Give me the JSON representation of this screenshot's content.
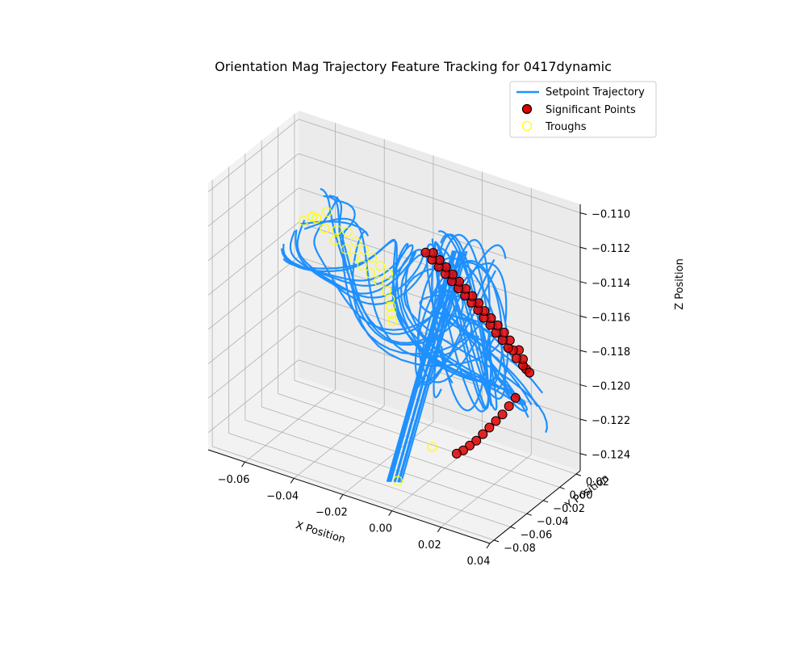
{
  "chart_data": {
    "type": "scatter",
    "title": "Orientation Mag Trajectory Feature Tracking for 0417dynamic",
    "xlabel": "X Position",
    "ylabel": "Y Position",
    "zlabel": "Z Position",
    "projection": "3d",
    "grid": true,
    "legend_placement": "top-right",
    "x_ticks": [
      "−0.06",
      "−0.04",
      "−0.02",
      "0.00",
      "0.02",
      "0.04"
    ],
    "y_ticks": [
      "−0.08",
      "−0.06",
      "−0.04",
      "−0.02",
      "0.00",
      "0.02"
    ],
    "z_ticks": [
      "−0.124",
      "−0.122",
      "−0.120",
      "−0.118",
      "−0.116",
      "−0.114",
      "−0.112",
      "−0.110"
    ],
    "xlim": [
      -0.075,
      0.04
    ],
    "ylim": [
      -0.085,
      0.025
    ],
    "zlim": [
      -0.125,
      -0.1095
    ],
    "series": [
      {
        "name": "Setpoint Trajectory",
        "kind": "line",
        "color": "#1e90ff"
      },
      {
        "name": "Significant Points",
        "kind": "scatter",
        "color": "#ff0000",
        "edge": "#000000"
      },
      {
        "name": "Troughs",
        "kind": "scatter",
        "color": "none",
        "edge": "#ffff00"
      }
    ],
    "significant_points": [
      {
        "x": 0.028,
        "y": -0.005,
        "z": -0.1185
      },
      {
        "x": 0.029,
        "y": -0.004,
        "z": -0.1187
      },
      {
        "x": 0.027,
        "y": -0.006,
        "z": -0.1183
      },
      {
        "x": 0.026,
        "y": -0.003,
        "z": -0.1181
      },
      {
        "x": 0.025,
        "y": -0.008,
        "z": -0.1179
      },
      {
        "x": 0.024,
        "y": -0.002,
        "z": -0.1177
      },
      {
        "x": 0.023,
        "y": -0.006,
        "z": -0.1176
      },
      {
        "x": 0.022,
        "y": -0.009,
        "z": -0.1174
      },
      {
        "x": 0.021,
        "y": -0.004,
        "z": -0.1172
      },
      {
        "x": 0.02,
        "y": -0.01,
        "z": -0.117
      },
      {
        "x": 0.019,
        "y": -0.005,
        "z": -0.1168
      },
      {
        "x": 0.018,
        "y": -0.012,
        "z": -0.1166
      },
      {
        "x": 0.017,
        "y": -0.007,
        "z": -0.1164
      },
      {
        "x": 0.016,
        "y": -0.013,
        "z": -0.1162
      },
      {
        "x": 0.015,
        "y": -0.009,
        "z": -0.116
      },
      {
        "x": 0.014,
        "y": -0.015,
        "z": -0.1158
      },
      {
        "x": 0.013,
        "y": -0.011,
        "z": -0.1156
      },
      {
        "x": 0.012,
        "y": -0.016,
        "z": -0.1154
      },
      {
        "x": 0.011,
        "y": -0.012,
        "z": -0.1152
      },
      {
        "x": 0.01,
        "y": -0.018,
        "z": -0.115
      },
      {
        "x": 0.009,
        "y": -0.014,
        "z": -0.1148
      },
      {
        "x": 0.008,
        "y": -0.02,
        "z": -0.1146
      },
      {
        "x": 0.007,
        "y": -0.016,
        "z": -0.1144
      },
      {
        "x": 0.006,
        "y": -0.022,
        "z": -0.1142
      },
      {
        "x": 0.005,
        "y": -0.018,
        "z": -0.114
      },
      {
        "x": 0.004,
        "y": -0.024,
        "z": -0.1138
      },
      {
        "x": 0.003,
        "y": -0.02,
        "z": -0.1136
      },
      {
        "x": 0.002,
        "y": -0.026,
        "z": -0.1134
      },
      {
        "x": 0.001,
        "y": -0.022,
        "z": -0.1132
      },
      {
        "x": 0.0,
        "y": -0.028,
        "z": -0.113
      },
      {
        "x": -0.001,
        "y": -0.024,
        "z": -0.1128
      },
      {
        "x": -0.002,
        "y": -0.03,
        "z": -0.1126
      },
      {
        "x": -0.003,
        "y": -0.026,
        "z": -0.1124
      },
      {
        "x": -0.004,
        "y": -0.032,
        "z": -0.1122
      },
      {
        "x": 0.026,
        "y": -0.012,
        "z": -0.12
      },
      {
        "x": 0.024,
        "y": -0.014,
        "z": -0.1205
      },
      {
        "x": 0.022,
        "y": -0.016,
        "z": -0.121
      },
      {
        "x": 0.02,
        "y": -0.018,
        "z": -0.1214
      },
      {
        "x": 0.018,
        "y": -0.02,
        "z": -0.1218
      },
      {
        "x": 0.016,
        "y": -0.022,
        "z": -0.1222
      },
      {
        "x": 0.014,
        "y": -0.024,
        "z": -0.1226
      },
      {
        "x": 0.012,
        "y": -0.026,
        "z": -0.1229
      },
      {
        "x": 0.01,
        "y": -0.028,
        "z": -0.1232
      },
      {
        "x": 0.008,
        "y": -0.03,
        "z": -0.1234
      }
    ],
    "troughs": [
      {
        "x": -0.068,
        "y": 0.01,
        "z": -0.115
      },
      {
        "x": -0.065,
        "y": 0.012,
        "z": -0.1147
      },
      {
        "x": -0.062,
        "y": 0.008,
        "z": -0.1145
      },
      {
        "x": -0.06,
        "y": 0.015,
        "z": -0.1143
      },
      {
        "x": -0.058,
        "y": 0.006,
        "z": -0.1148
      },
      {
        "x": -0.055,
        "y": 0.012,
        "z": -0.115
      },
      {
        "x": -0.053,
        "y": 0.004,
        "z": -0.1152
      },
      {
        "x": -0.05,
        "y": 0.01,
        "z": -0.1148
      },
      {
        "x": -0.048,
        "y": 0.002,
        "z": -0.1154
      },
      {
        "x": -0.046,
        "y": 0.008,
        "z": -0.1151
      },
      {
        "x": -0.044,
        "y": 0.0,
        "z": -0.1156
      },
      {
        "x": -0.042,
        "y": 0.006,
        "z": -0.1153
      },
      {
        "x": -0.04,
        "y": -0.002,
        "z": -0.1158
      },
      {
        "x": -0.038,
        "y": 0.004,
        "z": -0.1155
      },
      {
        "x": -0.036,
        "y": -0.004,
        "z": -0.116
      },
      {
        "x": -0.034,
        "y": 0.002,
        "z": -0.1157
      },
      {
        "x": -0.032,
        "y": -0.006,
        "z": -0.1162
      },
      {
        "x": -0.03,
        "y": 0.0,
        "z": -0.1159
      },
      {
        "x": -0.028,
        "y": -0.008,
        "z": -0.1165
      },
      {
        "x": -0.026,
        "y": -0.01,
        "z": -0.1168
      },
      {
        "x": -0.025,
        "y": -0.012,
        "z": -0.1171
      },
      {
        "x": -0.024,
        "y": -0.014,
        "z": -0.1174
      },
      {
        "x": -0.023,
        "y": -0.016,
        "z": -0.1177
      },
      {
        "x": -0.002,
        "y": -0.03,
        "z": -0.1235
      },
      {
        "x": -0.006,
        "y": -0.06,
        "z": -0.1245
      }
    ]
  }
}
